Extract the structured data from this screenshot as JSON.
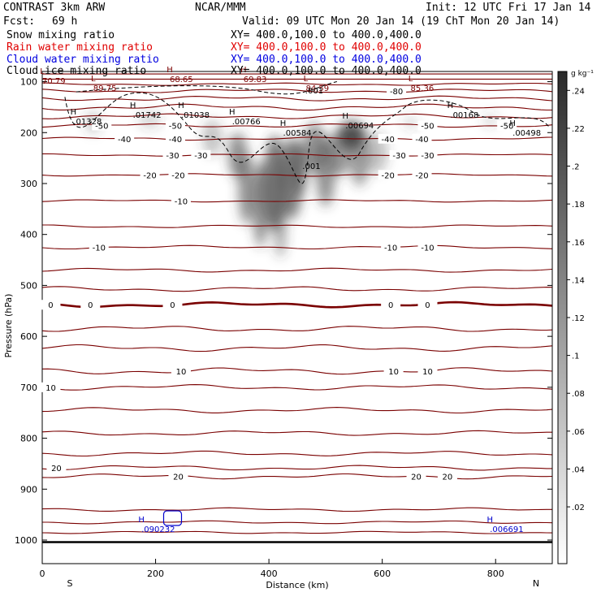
{
  "header": {
    "model": "CONTRAST  3km ARW",
    "org": "NCAR/MMM",
    "init": "Init: 12 UTC Fri 17 Jan 14",
    "fcst_label": "Fcst:",
    "fcst_value": "69 h",
    "valid": "Valid: 09 UTC Mon 20 Jan 14 (19 ChT Mon 20 Jan 14)"
  },
  "fields": [
    {
      "label": "Snow mixing ratio",
      "xy": "XY= 400.0,100.0 to 400.0,400.0",
      "color": "#000000"
    },
    {
      "label": "Rain water mixing ratio",
      "xy": "XY= 400.0,100.0 to 400.0,400.0",
      "color": "#e00000"
    },
    {
      "label": "Cloud water mixing ratio",
      "xy": "XY= 400.0,100.0 to 400.0,400.0",
      "color": "#0000e0"
    },
    {
      "label": "Cloud ice mixing ratio",
      "xy": "XY= 400.0,100.0 to 400.0,400.0",
      "color": "#000000"
    }
  ],
  "colorbar": {
    "unit": "g kg⁻¹",
    "tick_labels": [
      ".24",
      ".22",
      ".2",
      ".18",
      ".16",
      ".14",
      ".12",
      ".1",
      ".08",
      ".06",
      ".04",
      ".02"
    ]
  },
  "chart_data": {
    "type": "cross-section contour",
    "xlabel": "Distance (km)",
    "ylabel": "Pressure (hPa)",
    "xlim": [
      0,
      900
    ],
    "ylim": [
      1050,
      50
    ],
    "x_ticks": [
      0,
      200,
      400,
      600,
      800
    ],
    "y_ticks": [
      100,
      200,
      300,
      400,
      500,
      600,
      700,
      800,
      900,
      1000
    ],
    "x_end_labels": {
      "left": "S",
      "right": "N"
    },
    "colors": {
      "temperature": "#7a0000",
      "snow": "#000000",
      "cloud_water": "#0000cc",
      "shading": "#3a3a3a"
    },
    "temperature_contours": [
      {
        "label": "-80",
        "p": 118,
        "x": 625
      },
      {
        "label": "-50",
        "p": 186,
        "x": 105
      },
      {
        "label": "-50",
        "p": 186,
        "x": 235
      },
      {
        "label": "-50",
        "p": 186,
        "x": 680
      },
      {
        "label": "-50",
        "p": 186,
        "x": 820
      },
      {
        "label": "-40",
        "p": 212,
        "x": 145
      },
      {
        "label": "-40",
        "p": 212,
        "x": 235
      },
      {
        "label": "-40",
        "p": 212,
        "x": 610
      },
      {
        "label": "-40",
        "p": 212,
        "x": 670
      },
      {
        "label": "-30",
        "p": 244,
        "x": 230
      },
      {
        "label": "-30",
        "p": 244,
        "x": 280
      },
      {
        "label": "-30",
        "p": 244,
        "x": 630
      },
      {
        "label": "-30",
        "p": 244,
        "x": 680
      },
      {
        "label": "-20",
        "p": 283,
        "x": 190
      },
      {
        "label": "-20",
        "p": 283,
        "x": 240
      },
      {
        "label": "-20",
        "p": 283,
        "x": 610
      },
      {
        "label": "-20",
        "p": 283,
        "x": 670
      },
      {
        "label": "-10",
        "p": 334,
        "x": 245
      },
      {
        "label": "-10",
        "p": 425,
        "x": 100
      },
      {
        "label": "-10",
        "p": 425,
        "x": 615
      },
      {
        "label": "-10",
        "p": 425,
        "x": 680
      },
      {
        "label": "0",
        "p": 538,
        "x": 15
      },
      {
        "label": "0",
        "p": 538,
        "x": 85
      },
      {
        "label": "0",
        "p": 538,
        "x": 230
      },
      {
        "label": "0",
        "p": 538,
        "x": 615
      },
      {
        "label": "0",
        "p": 538,
        "x": 680
      },
      {
        "label": "10",
        "p": 668,
        "x": 245
      },
      {
        "label": "10",
        "p": 668,
        "x": 620
      },
      {
        "label": "10",
        "p": 668,
        "x": 680
      },
      {
        "label": "10",
        "p": 700,
        "x": 15
      },
      {
        "label": "20",
        "p": 858,
        "x": 25
      },
      {
        "label": "20",
        "p": 875,
        "x": 240
      },
      {
        "label": "20",
        "p": 875,
        "x": 660
      },
      {
        "label": "20",
        "p": 875,
        "x": 715
      }
    ],
    "extrema": [
      {
        "kind": "L",
        "value": "70.79",
        "x": 0,
        "p": 88,
        "color": "#7a0000"
      },
      {
        "kind": "H",
        "value": "68.65",
        "x": 225,
        "p": 85,
        "color": "#7a0000"
      },
      {
        "kind": "L",
        "value": "89.75",
        "x": 90,
        "p": 102,
        "color": "#7a0000"
      },
      {
        "kind": "H",
        "value": "69.83",
        "x": 355,
        "p": 85,
        "color": "#7a0000"
      },
      {
        "kind": "L",
        "value": "84.59",
        "x": 465,
        "p": 102,
        "color": "#7a0000"
      },
      {
        "kind": "L",
        "value": "85.36",
        "x": 650,
        "p": 102,
        "color": "#7a0000"
      },
      {
        "kind": "H",
        "value": ".01328",
        "x": 55,
        "p": 168,
        "color": "#000000"
      },
      {
        "kind": "H",
        "value": ".01742",
        "x": 160,
        "p": 155,
        "color": "#000000"
      },
      {
        "kind": "H",
        "value": ".01038",
        "x": 245,
        "p": 155,
        "color": "#000000"
      },
      {
        "kind": "H",
        "value": ".00766",
        "x": 335,
        "p": 168,
        "color": "#000000"
      },
      {
        "kind": "H",
        "value": ".00584",
        "x": 425,
        "p": 190,
        "color": "#000000"
      },
      {
        "kind": "H",
        "value": ".00694",
        "x": 535,
        "p": 176,
        "color": "#000000"
      },
      {
        "kind": "H",
        "value": ".00168",
        "x": 720,
        "p": 155,
        "color": "#000000"
      },
      {
        "kind": "H",
        "value": ".00498",
        "x": 830,
        "p": 190,
        "color": "#000000"
      },
      {
        "kind": "H",
        "value": ".090232",
        "x": 175,
        "p": 968,
        "color": "#0000cc"
      },
      {
        "kind": "H",
        "value": ".006691",
        "x": 790,
        "p": 968,
        "color": "#0000cc"
      }
    ],
    "snow_contour_labels": [
      {
        "label": ".001",
        "x": 480,
        "p": 117
      },
      {
        "label": ".001",
        "x": 475,
        "p": 265
      }
    ]
  }
}
